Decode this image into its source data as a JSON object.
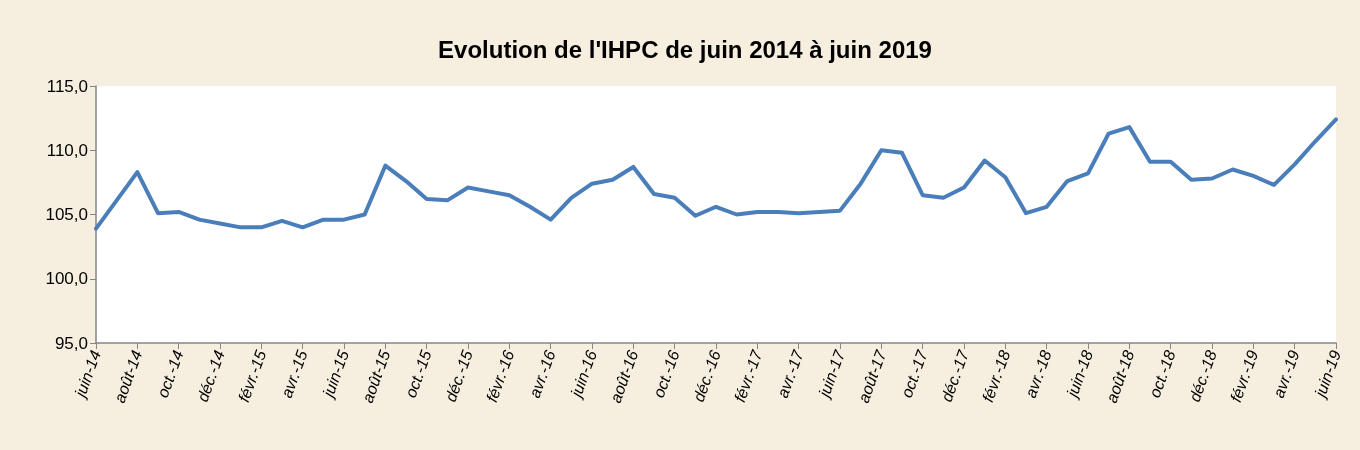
{
  "chart_data": {
    "type": "line",
    "title": "Evolution de l'IHPC de juin 2014 à juin 2019",
    "categories": [
      "juin-14",
      null,
      "août-14",
      null,
      "oct.-14",
      null,
      "déc.-14",
      null,
      "févr.-15",
      null,
      "avr.-15",
      null,
      "juin-15",
      null,
      "août-15",
      null,
      "oct.-15",
      null,
      "déc.-15",
      null,
      "févr.-16",
      null,
      "avr.-16",
      null,
      "juin-16",
      null,
      "août-16",
      null,
      "oct.-16",
      null,
      "déc.-16",
      null,
      "févr.-17",
      null,
      "avr.-17",
      null,
      "juin-17",
      null,
      "août-17",
      null,
      "oct.-17",
      null,
      "déc.-17",
      null,
      "févr.-18",
      null,
      "avr.-18",
      null,
      "juin-18",
      null,
      "août-18",
      null,
      "oct.-18",
      null,
      "déc.-18",
      null,
      "févr.-19",
      null,
      "avr.-19",
      null,
      "juin-19"
    ],
    "series": [
      {
        "color": "#4a7ebb",
        "values": [
          103.9,
          106.1,
          108.3,
          105.1,
          105.2,
          104.6,
          104.3,
          104.0,
          104.0,
          104.5,
          104.0,
          104.6,
          104.6,
          105.0,
          108.8,
          107.6,
          106.2,
          106.1,
          107.1,
          106.8,
          106.5,
          105.6,
          104.6,
          106.3,
          107.4,
          107.7,
          108.7,
          106.6,
          106.3,
          104.9,
          105.6,
          105.0,
          105.2,
          105.2,
          105.1,
          105.2,
          105.3,
          107.4,
          110.0,
          109.8,
          106.5,
          106.3,
          107.1,
          109.2,
          107.9,
          105.1,
          105.6,
          107.6,
          108.2,
          111.3,
          111.8,
          109.1,
          109.1,
          107.7,
          107.8,
          108.5,
          108.0,
          107.3,
          108.9,
          110.7,
          112.4
        ]
      }
    ],
    "ylim": [
      95,
      115
    ],
    "yticks": [
      {
        "value": 95,
        "label": "95,0"
      },
      {
        "value": 100,
        "label": "100,0"
      },
      {
        "value": 105,
        "label": "105,0"
      },
      {
        "value": 110,
        "label": "110,0"
      },
      {
        "value": 115,
        "label": "115,0"
      }
    ],
    "grid": false,
    "marker": "none",
    "line_style": "solid"
  }
}
